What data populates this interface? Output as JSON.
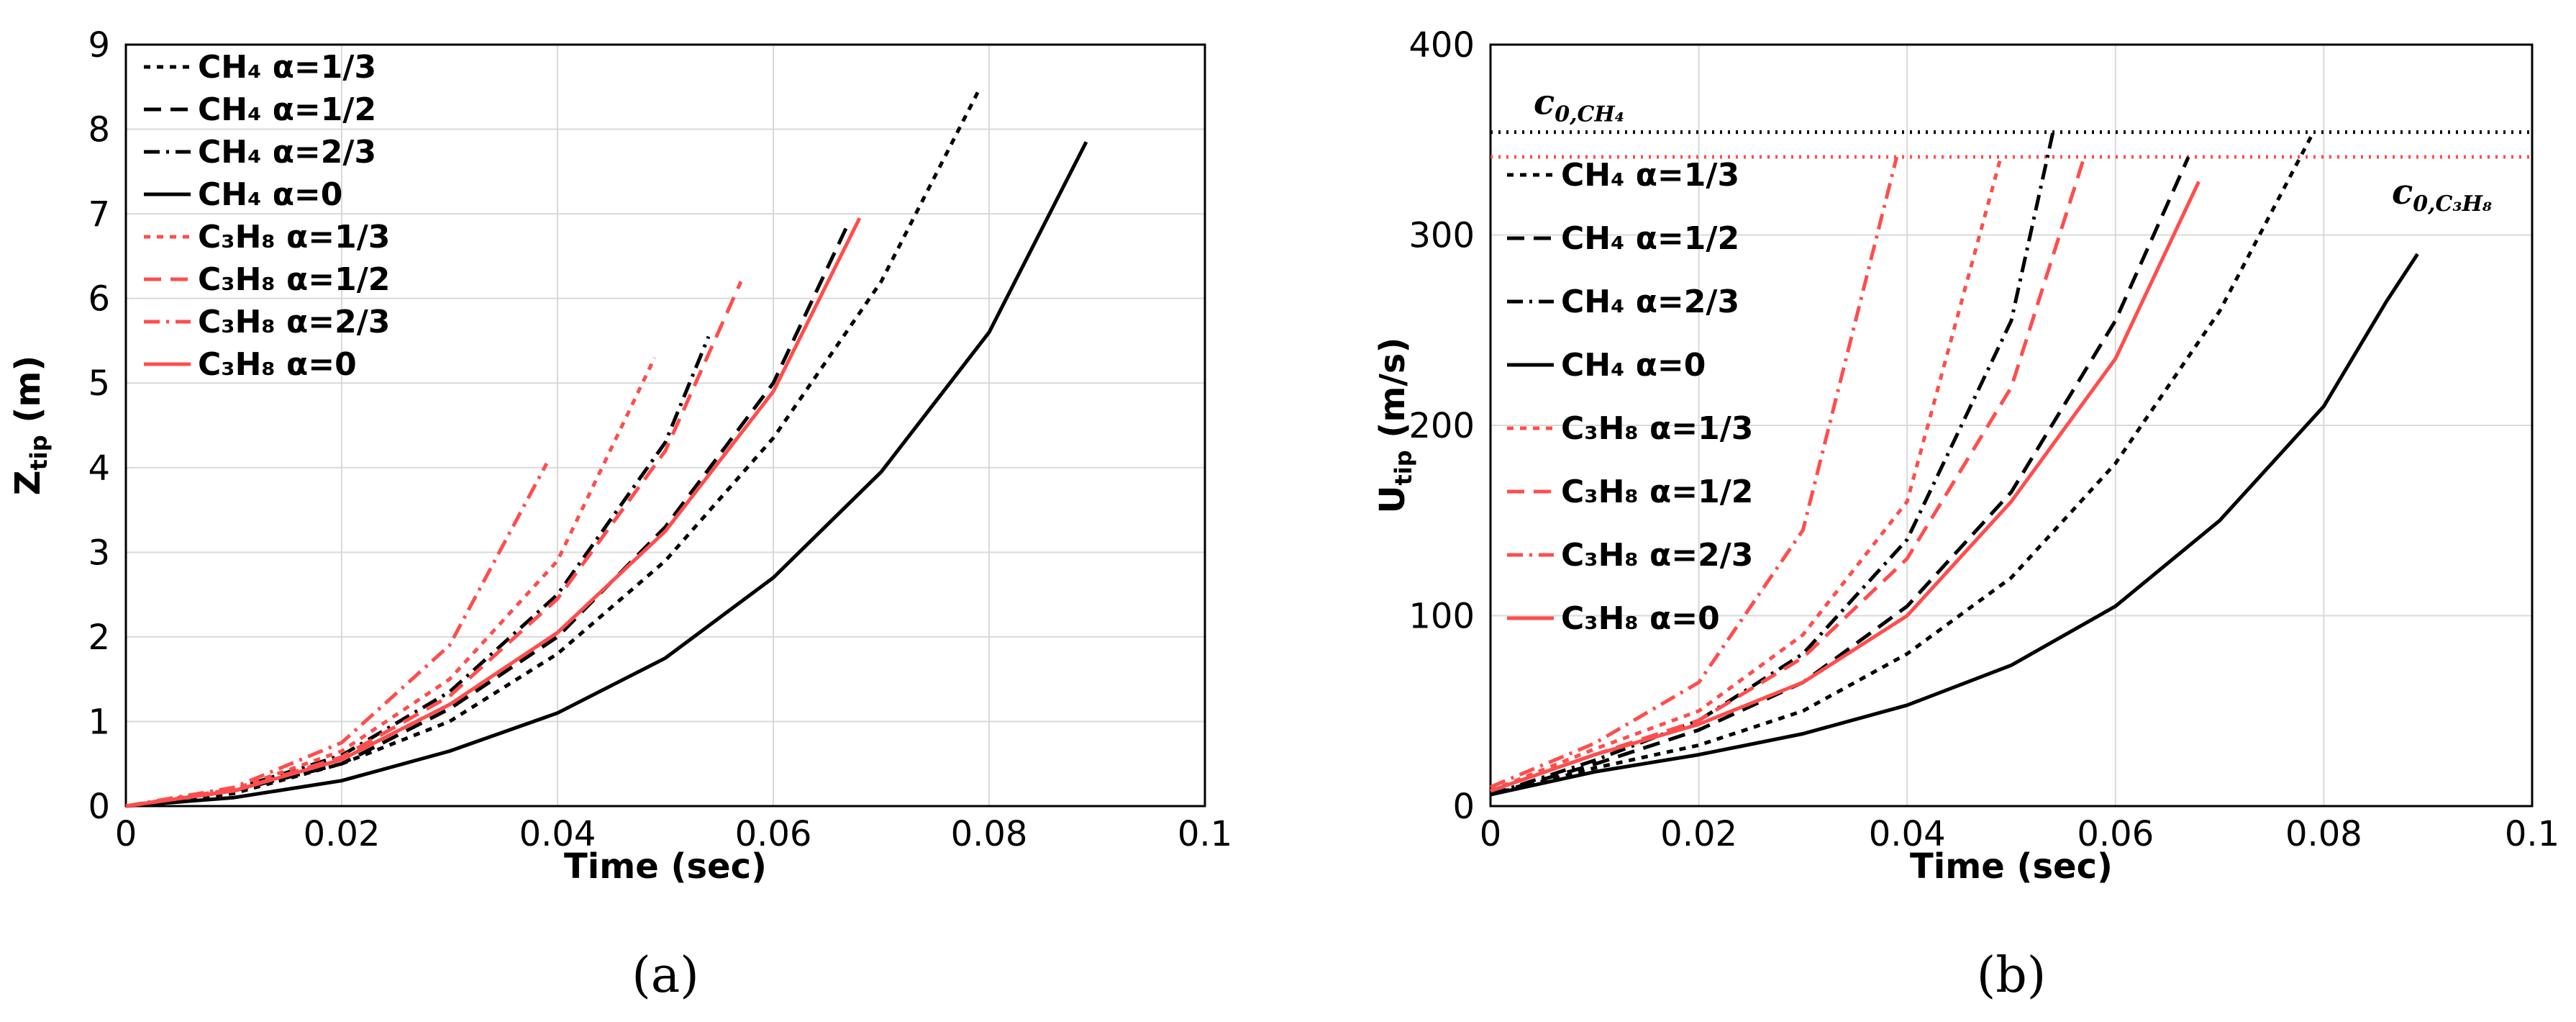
{
  "chart_data": [
    {
      "type": "line",
      "panel_label": "(a)",
      "xlabel": "Time (sec)",
      "ylabel": "Z",
      "ylabel_sub": "tip",
      "ylabel_unit": " (m)",
      "xlim": [
        0,
        0.1
      ],
      "ylim": [
        0,
        9
      ],
      "x_ticks": [
        "0",
        "0.02",
        "0.04",
        "0.06",
        "0.08",
        "0.1"
      ],
      "y_ticks": [
        "0",
        "1",
        "2",
        "3",
        "4",
        "5",
        "6",
        "7",
        "8",
        "9"
      ],
      "grid": true,
      "legend_position": "top-left",
      "series": [
        {
          "name": "CH₄ α=1/3",
          "color": "#000000",
          "dash": "short-dash",
          "x": [
            0,
            0.01,
            0.02,
            0.03,
            0.04,
            0.05,
            0.06,
            0.07,
            0.079
          ],
          "y": [
            0,
            0.15,
            0.5,
            1.0,
            1.8,
            2.9,
            4.35,
            6.2,
            8.45
          ]
        },
        {
          "name": "CH₄ α=1/2",
          "color": "#000000",
          "dash": "dash",
          "x": [
            0,
            0.01,
            0.02,
            0.03,
            0.04,
            0.05,
            0.06,
            0.067
          ],
          "y": [
            0,
            0.18,
            0.5,
            1.15,
            2.0,
            3.3,
            5.0,
            6.9
          ]
        },
        {
          "name": "CH₄ α=2/3",
          "color": "#000000",
          "dash": "dash-dot",
          "x": [
            0,
            0.01,
            0.02,
            0.03,
            0.04,
            0.05,
            0.054
          ],
          "y": [
            0,
            0.2,
            0.6,
            1.35,
            2.5,
            4.3,
            5.55
          ]
        },
        {
          "name": "CH₄ α=0",
          "color": "#000000",
          "dash": "solid",
          "x": [
            0,
            0.01,
            0.02,
            0.03,
            0.04,
            0.05,
            0.06,
            0.07,
            0.08,
            0.089
          ],
          "y": [
            0,
            0.1,
            0.3,
            0.65,
            1.1,
            1.75,
            2.7,
            3.95,
            5.6,
            7.85
          ]
        },
        {
          "name": "C₃H₈ α=1/3",
          "color": "#ff4d4d",
          "dash": "short-dash",
          "x": [
            0,
            0.01,
            0.02,
            0.03,
            0.04,
            0.049
          ],
          "y": [
            0,
            0.2,
            0.65,
            1.5,
            2.9,
            5.3
          ]
        },
        {
          "name": "C₃H₈ α=1/2",
          "color": "#ff4d4d",
          "dash": "dash",
          "x": [
            0,
            0.01,
            0.02,
            0.03,
            0.04,
            0.05,
            0.057
          ],
          "y": [
            0,
            0.18,
            0.58,
            1.3,
            2.45,
            4.2,
            6.2
          ]
        },
        {
          "name": "C₃H₈ α=2/3",
          "color": "#ff4d4d",
          "dash": "dash-dot",
          "x": [
            0,
            0.01,
            0.02,
            0.03,
            0.039
          ],
          "y": [
            0,
            0.22,
            0.75,
            1.9,
            4.05
          ]
        },
        {
          "name": "C₃H₈ α=0",
          "color": "#ff4d4d",
          "dash": "solid",
          "x": [
            0,
            0.01,
            0.02,
            0.03,
            0.04,
            0.05,
            0.06,
            0.068
          ],
          "y": [
            0,
            0.18,
            0.55,
            1.2,
            2.05,
            3.25,
            4.9,
            6.95
          ]
        }
      ]
    },
    {
      "type": "line",
      "panel_label": "(b)",
      "xlabel": "Time (sec)",
      "ylabel": "U",
      "ylabel_sub": "tip",
      "ylabel_unit": " (m/s)",
      "xlim": [
        0,
        0.1
      ],
      "ylim": [
        0,
        400
      ],
      "x_ticks": [
        "0",
        "0.02",
        "0.04",
        "0.06",
        "0.08",
        "0.1"
      ],
      "y_ticks": [
        "0",
        "100",
        "200",
        "300",
        "400"
      ],
      "grid": true,
      "legend_position": "left",
      "reference_lines": [
        {
          "label_main": "c",
          "label_sub": "0,CH₄",
          "value": 354,
          "color": "#000000",
          "style": "dotted"
        },
        {
          "label_main": "c",
          "label_sub": "0,C₃H₈",
          "value": 341,
          "color": "#ff4d4d",
          "style": "dotted"
        }
      ],
      "series": [
        {
          "name": "CH₄ α=1/3",
          "color": "#000000",
          "dash": "short-dash",
          "x": [
            0,
            0.01,
            0.02,
            0.03,
            0.04,
            0.05,
            0.06,
            0.07,
            0.079
          ],
          "y": [
            6,
            20,
            32,
            50,
            80,
            120,
            180,
            260,
            354
          ]
        },
        {
          "name": "CH₄ α=1/2",
          "color": "#000000",
          "dash": "dash",
          "x": [
            0,
            0.01,
            0.02,
            0.03,
            0.04,
            0.05,
            0.06,
            0.067
          ],
          "y": [
            6,
            22,
            40,
            65,
            105,
            165,
            255,
            341
          ]
        },
        {
          "name": "CH₄ α=2/3",
          "color": "#000000",
          "dash": "dash-dot",
          "x": [
            0,
            0.01,
            0.02,
            0.03,
            0.04,
            0.05,
            0.054
          ],
          "y": [
            6,
            24,
            45,
            80,
            140,
            255,
            354
          ]
        },
        {
          "name": "CH₄ α=0",
          "color": "#000000",
          "dash": "solid",
          "x": [
            0,
            0.01,
            0.02,
            0.03,
            0.04,
            0.05,
            0.06,
            0.07,
            0.08,
            0.086,
            0.089
          ],
          "y": [
            6,
            18,
            27,
            38,
            53,
            74,
            105,
            150,
            210,
            265,
            290
          ]
        },
        {
          "name": "C₃H₈ α=1/3",
          "color": "#ff4d4d",
          "dash": "short-dash",
          "x": [
            0,
            0.01,
            0.02,
            0.03,
            0.04,
            0.049
          ],
          "y": [
            8,
            30,
            50,
            90,
            160,
            341
          ]
        },
        {
          "name": "C₃H₈ α=1/2",
          "color": "#ff4d4d",
          "dash": "dash",
          "x": [
            0,
            0.01,
            0.02,
            0.03,
            0.04,
            0.05,
            0.057
          ],
          "y": [
            8,
            27,
            45,
            78,
            130,
            220,
            341
          ]
        },
        {
          "name": "C₃H₈ α=2/3",
          "color": "#ff4d4d",
          "dash": "dash-dot",
          "x": [
            0,
            0.01,
            0.02,
            0.03,
            0.039
          ],
          "y": [
            10,
            33,
            65,
            145,
            341
          ]
        },
        {
          "name": "C₃H₈ α=0",
          "color": "#ff4d4d",
          "dash": "solid",
          "x": [
            0,
            0.01,
            0.02,
            0.03,
            0.04,
            0.05,
            0.06,
            0.068
          ],
          "y": [
            8,
            27,
            43,
            65,
            100,
            160,
            235,
            328
          ]
        }
      ]
    }
  ]
}
